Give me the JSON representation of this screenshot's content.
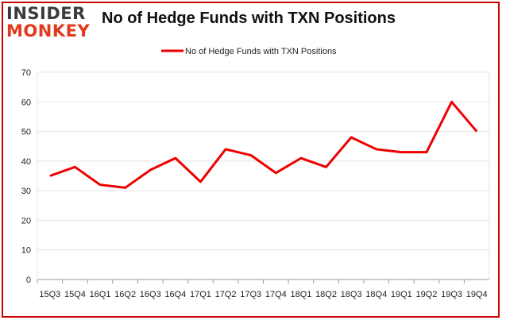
{
  "logo": {
    "line1": "INSIDER",
    "line2": "MONKEY"
  },
  "chart_data": {
    "type": "line",
    "title": "No of Hedge Funds with TXN Positions",
    "xlabel": "",
    "ylabel": "",
    "categories": [
      "15Q3",
      "15Q4",
      "16Q1",
      "16Q2",
      "16Q3",
      "16Q4",
      "17Q1",
      "17Q2",
      "17Q3",
      "17Q4",
      "18Q1",
      "18Q2",
      "18Q3",
      "18Q4",
      "19Q1",
      "19Q2",
      "19Q3",
      "19Q4"
    ],
    "series": [
      {
        "name": "No of Hedge Funds with TXN Positions",
        "values": [
          35,
          38,
          32,
          31,
          37,
          41,
          33,
          44,
          42,
          36,
          41,
          38,
          48,
          44,
          43,
          43,
          60,
          50
        ],
        "color": "#ee0000"
      }
    ],
    "ylim": [
      0,
      70
    ],
    "yticks": [
      0,
      10,
      20,
      30,
      40,
      50,
      60,
      70
    ],
    "grid": true,
    "legend": "top-center"
  }
}
